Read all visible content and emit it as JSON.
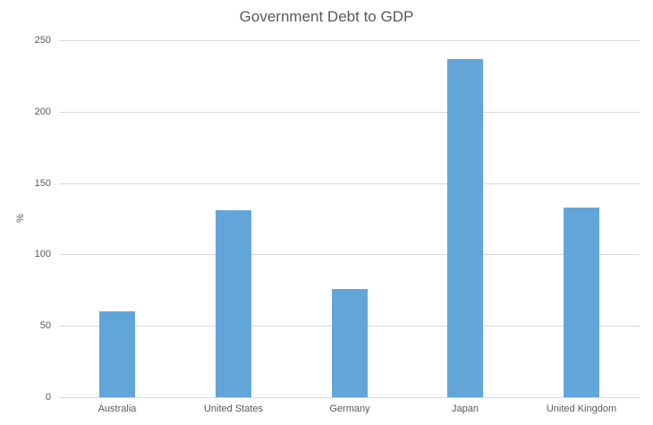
{
  "chart": {
    "title": "Government Debt to GDP",
    "y_axis_title": "%"
  },
  "chart_data": {
    "type": "bar",
    "title": "Government Debt to GDP",
    "categories": [
      "Australia",
      "United States",
      "Germany",
      "Japan",
      "United Kingdom"
    ],
    "values": [
      60,
      131,
      76,
      237,
      133
    ],
    "xlabel": "",
    "ylabel": "%",
    "ylim": [
      0,
      250
    ],
    "yticks": [
      0,
      50,
      100,
      150,
      200,
      250
    ],
    "grid": true,
    "legend": false,
    "colors": {
      "bar": "#62A6D9",
      "gridline": "#D9D9D9",
      "axis_line": "#D9D9D9",
      "text": "#595959",
      "background": "#FFFFFF"
    }
  }
}
